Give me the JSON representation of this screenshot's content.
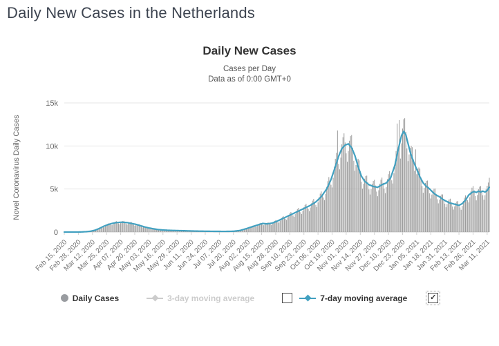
{
  "page": {
    "title": "Daily New Cases in the Netherlands"
  },
  "chart": {
    "title": "Daily New Cases",
    "subtitle1": "Cases per Day",
    "subtitle2": "Data as of 0:00 GMT+0",
    "y_axis_title": "Novel Coronavirus Daily Cases",
    "legend": {
      "items": [
        {
          "label": "Daily Cases",
          "marker": "circle",
          "color": "#999ca0",
          "enabled": true,
          "checkbox": "none"
        },
        {
          "label": "3-day moving average",
          "marker": "line-diamond",
          "color": "#cccccc",
          "enabled": false,
          "checkbox": "unchecked"
        },
        {
          "label": "7-day moving average",
          "marker": "line-diamond",
          "color": "#41a0c0",
          "enabled": true,
          "checkbox": "checked"
        }
      ],
      "checkmark_glyph": "✓"
    }
  },
  "chart_data": {
    "type": "bar",
    "title": "Daily New Cases",
    "subtitle": [
      "Cases per Day",
      "Data as of 0:00 GMT+0"
    ],
    "xlabel": "",
    "ylabel": "Novel Coronavirus Daily Cases",
    "ylim": [
      0,
      15000
    ],
    "y_ticks": [
      {
        "v": 0,
        "label": "0"
      },
      {
        "v": 5000,
        "label": "5k"
      },
      {
        "v": 10000,
        "label": "10k"
      },
      {
        "v": 15000,
        "label": "15k"
      }
    ],
    "grid": "horizontal",
    "legend_position": "bottom",
    "x_is_days_from": "Feb 15, 2020",
    "total_days": 392,
    "tick_interval_days": 13,
    "x_tick_labels": [
      "Feb 15, 2020",
      "Feb 28, 2020",
      "Mar 12, 2020",
      "Mar 25, 2020",
      "Apr 07, 2020",
      "Apr 20, 2020",
      "May 03, 2020",
      "May 16, 2020",
      "May 29, 2020",
      "Jun 11, 2020",
      "Jun 24, 2020",
      "Jul 07, 2020",
      "Jul 20, 2020",
      "Aug 02, 2020",
      "Aug 15, 2020",
      "Aug 28, 2020",
      "Sep 10, 2020",
      "Sep 23, 2020",
      "Oct 06, 2020",
      "Oct 19, 2020",
      "Nov 01, 2020",
      "Nov 14, 2020",
      "Nov 27, 2020",
      "Dec 10, 2020",
      "Dec 23, 2020",
      "Jan 05, 2021",
      "Jan 18, 2021",
      "Jan 31, 2021",
      "Feb 13, 2021",
      "Feb 26, 2021",
      "Mar 11, 2021"
    ],
    "series": [
      {
        "name": "Daily Cases",
        "type": "bar",
        "color": "#9b9b9b",
        "derived_from": "7-day average anchors times weekday multipliers, plus outliers"
      },
      {
        "name": "3-day moving average",
        "type": "line",
        "color": "#cccccc",
        "visible": false
      },
      {
        "name": "7-day moving average",
        "type": "line",
        "color": "#41a0c0",
        "visible": true,
        "anchors": [
          [
            0,
            0
          ],
          [
            12,
            0
          ],
          [
            16,
            15
          ],
          [
            20,
            40
          ],
          [
            24,
            90
          ],
          [
            28,
            200
          ],
          [
            32,
            400
          ],
          [
            36,
            650
          ],
          [
            40,
            850
          ],
          [
            44,
            1000
          ],
          [
            48,
            1100
          ],
          [
            53,
            1150
          ],
          [
            58,
            1100
          ],
          [
            62,
            1000
          ],
          [
            66,
            900
          ],
          [
            70,
            750
          ],
          [
            74,
            600
          ],
          [
            78,
            480
          ],
          [
            82,
            380
          ],
          [
            86,
            300
          ],
          [
            90,
            250
          ],
          [
            95,
            210
          ],
          [
            100,
            185
          ],
          [
            108,
            160
          ],
          [
            116,
            130
          ],
          [
            124,
            105
          ],
          [
            132,
            90
          ],
          [
            140,
            80
          ],
          [
            148,
            75
          ],
          [
            156,
            90
          ],
          [
            162,
            180
          ],
          [
            168,
            400
          ],
          [
            174,
            650
          ],
          [
            179,
            850
          ],
          [
            183,
            1000
          ],
          [
            187,
            950
          ],
          [
            192,
            1050
          ],
          [
            197,
            1300
          ],
          [
            202,
            1600
          ],
          [
            207,
            1900
          ],
          [
            212,
            2200
          ],
          [
            217,
            2500
          ],
          [
            222,
            2800
          ],
          [
            227,
            3100
          ],
          [
            232,
            3500
          ],
          [
            237,
            4100
          ],
          [
            242,
            5000
          ],
          [
            246,
            6100
          ],
          [
            250,
            7600
          ],
          [
            253,
            8800
          ],
          [
            256,
            9700
          ],
          [
            259,
            10100
          ],
          [
            262,
            10250
          ],
          [
            265,
            9800
          ],
          [
            268,
            8900
          ],
          [
            271,
            7600
          ],
          [
            274,
            6500
          ],
          [
            277,
            5900
          ],
          [
            281,
            5500
          ],
          [
            285,
            5300
          ],
          [
            289,
            5200
          ],
          [
            293,
            5500
          ],
          [
            297,
            5700
          ],
          [
            301,
            6300
          ],
          [
            305,
            7800
          ],
          [
            308,
            9600
          ],
          [
            311,
            11200
          ],
          [
            313,
            11700
          ],
          [
            315,
            11300
          ],
          [
            317,
            10300
          ],
          [
            319,
            9300
          ],
          [
            322,
            8200
          ],
          [
            325,
            7300
          ],
          [
            328,
            6400
          ],
          [
            331,
            5700
          ],
          [
            334,
            5300
          ],
          [
            337,
            5000
          ],
          [
            340,
            4600
          ],
          [
            343,
            4300
          ],
          [
            346,
            4100
          ],
          [
            349,
            3800
          ],
          [
            352,
            3600
          ],
          [
            355,
            3400
          ],
          [
            358,
            3300
          ],
          [
            361,
            3200
          ],
          [
            364,
            3100
          ],
          [
            367,
            3300
          ],
          [
            370,
            3700
          ],
          [
            373,
            4300
          ],
          [
            376,
            4600
          ],
          [
            378,
            4700
          ],
          [
            380,
            4600
          ],
          [
            382,
            4750
          ],
          [
            384,
            4650
          ],
          [
            386,
            4750
          ],
          [
            388,
            4650
          ],
          [
            390,
            4800
          ],
          [
            392,
            5200
          ]
        ]
      }
    ],
    "weekday_multipliers": [
      1.03,
      0.9,
      0.8,
      0.92,
      1.05,
      1.12,
      1.15
    ],
    "outlier_bars": {
      "252": 11800,
      "307": 12600,
      "309": 13000,
      "324": 9600,
      "392": 6300
    },
    "colors": {
      "bar": "#9b9b9b",
      "line": "#41a0c0",
      "grid": "#e6e6e6",
      "axis": "#d0d0d0",
      "tick_label": "#666666",
      "x_label": "#707070"
    }
  }
}
